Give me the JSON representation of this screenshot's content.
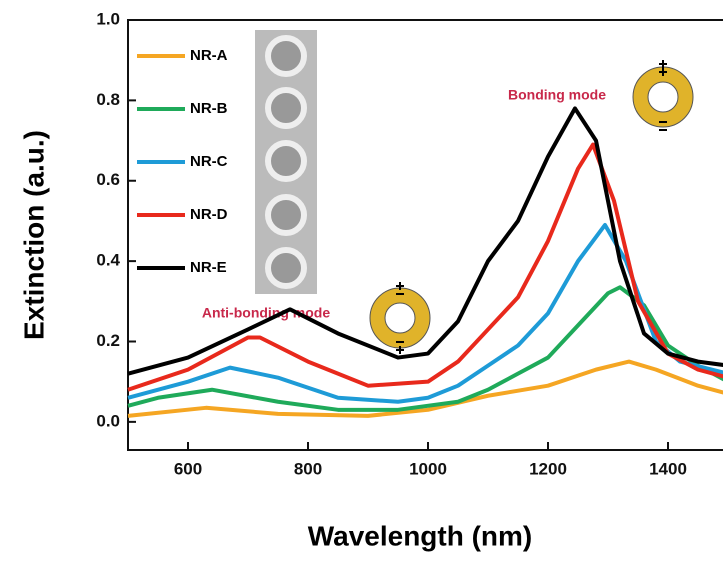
{
  "chart_data": {
    "type": "line",
    "xlabel": "Wavelength (nm)",
    "ylabel": "Extinction (a.u.)",
    "xlim": [
      500,
      1500
    ],
    "ylim": [
      -0.07,
      1.0
    ],
    "xticks": [
      600,
      800,
      1000,
      1200,
      1400
    ],
    "yticks": [
      {
        "value": 0,
        "label": "0.0"
      },
      {
        "value": 0.2,
        "label": "0.2"
      },
      {
        "value": 0.4,
        "label": "0.4"
      },
      {
        "value": 0.6,
        "label": "0.6"
      },
      {
        "value": 0.8,
        "label": "0.8"
      },
      {
        "value": 1,
        "label": "1.0"
      }
    ],
    "annotations": [
      "Bonding mode",
      "Anti-bonding mode"
    ],
    "series": [
      {
        "name": "NR-A",
        "color": "#f5a623",
        "x": [
          500,
          630,
          750,
          900,
          1000,
          1100,
          1200,
          1280,
          1335,
          1380,
          1450,
          1500
        ],
        "values": [
          0.015,
          0.035,
          0.02,
          0.015,
          0.03,
          0.065,
          0.09,
          0.13,
          0.15,
          0.13,
          0.09,
          0.07
        ]
      },
      {
        "name": "NR-B",
        "color": "#1faa5a",
        "x": [
          500,
          550,
          640,
          750,
          850,
          950,
          1050,
          1100,
          1150,
          1200,
          1250,
          1300,
          1320,
          1360,
          1400,
          1450,
          1500
        ],
        "values": [
          0.04,
          0.06,
          0.08,
          0.05,
          0.03,
          0.03,
          0.05,
          0.08,
          0.12,
          0.16,
          0.24,
          0.32,
          0.335,
          0.29,
          0.19,
          0.14,
          0.1
        ]
      },
      {
        "name": "NR-C",
        "color": "#1e9bd7",
        "x": [
          500,
          600,
          670,
          750,
          850,
          950,
          1000,
          1050,
          1100,
          1150,
          1200,
          1250,
          1295,
          1330,
          1380,
          1420,
          1500
        ],
        "values": [
          0.06,
          0.1,
          0.135,
          0.11,
          0.06,
          0.05,
          0.06,
          0.09,
          0.14,
          0.19,
          0.27,
          0.4,
          0.49,
          0.4,
          0.2,
          0.15,
          0.12
        ]
      },
      {
        "name": "NR-D",
        "color": "#e8291c",
        "x": [
          500,
          600,
          700,
          720,
          800,
          900,
          1000,
          1050,
          1100,
          1150,
          1200,
          1250,
          1275,
          1310,
          1350,
          1400,
          1450,
          1500
        ],
        "values": [
          0.08,
          0.13,
          0.21,
          0.21,
          0.15,
          0.09,
          0.1,
          0.15,
          0.23,
          0.31,
          0.45,
          0.63,
          0.69,
          0.55,
          0.3,
          0.17,
          0.13,
          0.11
        ]
      },
      {
        "name": "NR-E",
        "color": "#000000",
        "x": [
          500,
          600,
          700,
          770,
          850,
          950,
          1000,
          1050,
          1100,
          1150,
          1200,
          1245,
          1280,
          1320,
          1360,
          1400,
          1450,
          1500
        ],
        "values": [
          0.12,
          0.16,
          0.23,
          0.28,
          0.22,
          0.16,
          0.17,
          0.25,
          0.4,
          0.5,
          0.66,
          0.78,
          0.7,
          0.4,
          0.22,
          0.17,
          0.15,
          0.14
        ]
      }
    ]
  }
}
